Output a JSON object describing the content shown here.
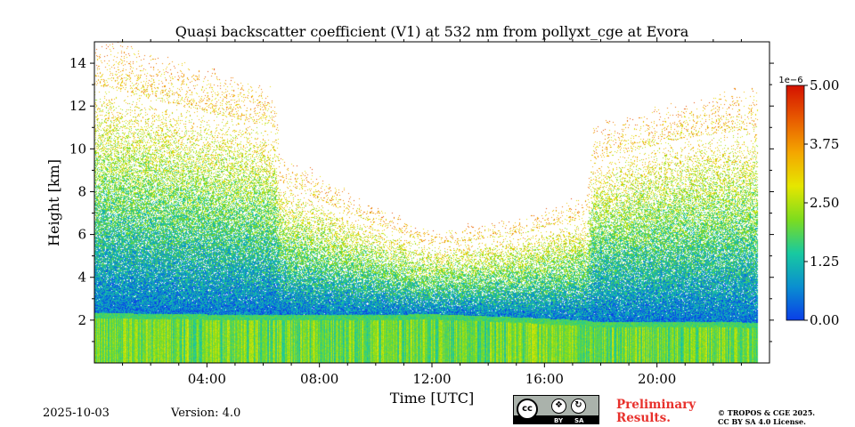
{
  "chart_data": {
    "type": "heatmap",
    "title": "Quasi backscatter coefficient (V1) at 532 nm from pollyxt_cge at Evora",
    "xlabel": "Time [UTC]",
    "ylabel": "Height [km]",
    "xlim_hours": [
      0,
      24
    ],
    "ylim_km": [
      0,
      15
    ],
    "x_ticks": [
      {
        "hour": 4,
        "label": "04:00"
      },
      {
        "hour": 8,
        "label": "08:00"
      },
      {
        "hour": 12,
        "label": "12:00"
      },
      {
        "hour": 16,
        "label": "16:00"
      },
      {
        "hour": 20,
        "label": "20:00"
      }
    ],
    "y_ticks": [
      {
        "value": 2,
        "label": "2"
      },
      {
        "value": 4,
        "label": "4"
      },
      {
        "value": 6,
        "label": "6"
      },
      {
        "value": 8,
        "label": "8"
      },
      {
        "value": 10,
        "label": "10"
      },
      {
        "value": 12,
        "label": "12"
      },
      {
        "value": 14,
        "label": "14"
      }
    ],
    "colorbar": {
      "exponent_label": "1e−6",
      "range": [
        0,
        5
      ],
      "ticks": [
        {
          "value": 0,
          "label": "0.00"
        },
        {
          "value": 1.25,
          "label": "1.25"
        },
        {
          "value": 2.5,
          "label": "2.50"
        },
        {
          "value": 3.75,
          "label": "3.75"
        },
        {
          "value": 5,
          "label": "5.00"
        }
      ],
      "colors": [
        "#0a3ee8",
        "#0a8fd0",
        "#18c9a0",
        "#7ddc1e",
        "#e6e600",
        "#f4a600",
        "#e85a00",
        "#d41200"
      ]
    },
    "data_end_hour": 23.6,
    "profile": {
      "hours": [
        0.0,
        3.0,
        6.4,
        6.6,
        9.0,
        12.0,
        15.0,
        17.5,
        17.7,
        21.0,
        23.6
      ],
      "signal_top": [
        13.0,
        12.0,
        11.0,
        8.5,
        7.0,
        5.5,
        6.0,
        6.8,
        9.5,
        10.5,
        11.0
      ],
      "boundary_layer_top": [
        2.1,
        2.05,
        2.0,
        2.0,
        2.0,
        2.05,
        1.9,
        1.75,
        1.7,
        1.7,
        1.65
      ]
    }
  },
  "footer": {
    "date": "2025-10-03",
    "version": "Version: 4.0",
    "preliminary_line1": "Preliminary",
    "preliminary_line2": "Results.",
    "copyright_line1": "© TROPOS & CGE 2025.",
    "copyright_line2": "CC BY SA 4.0 License.",
    "license_badge": {
      "main": "cc",
      "by": "BY",
      "sa": "SA"
    }
  }
}
